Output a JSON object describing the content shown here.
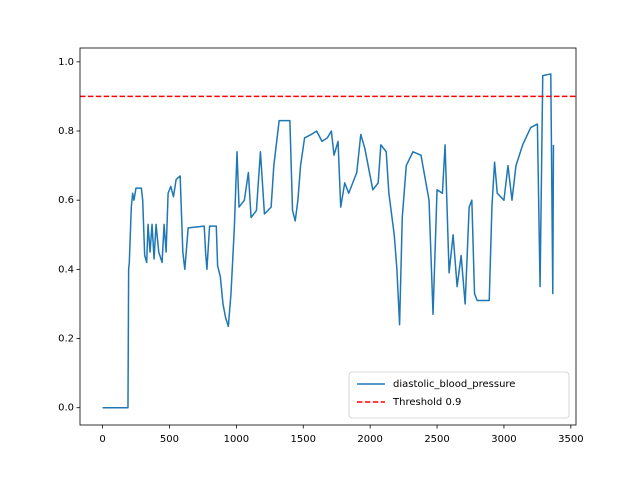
{
  "chart_data": {
    "type": "line",
    "x": [
      0,
      190,
      195,
      200,
      215,
      225,
      235,
      250,
      290,
      300,
      315,
      330,
      340,
      355,
      370,
      385,
      400,
      420,
      445,
      460,
      475,
      490,
      510,
      530,
      550,
      580,
      600,
      615,
      640,
      760,
      770,
      780,
      800,
      850,
      860,
      880,
      900,
      920,
      940,
      960,
      985,
      995,
      1005,
      1020,
      1060,
      1090,
      1110,
      1150,
      1180,
      1210,
      1260,
      1280,
      1320,
      1400,
      1420,
      1440,
      1460,
      1480,
      1510,
      1560,
      1600,
      1640,
      1680,
      1710,
      1730,
      1760,
      1780,
      1810,
      1840,
      1870,
      1900,
      1930,
      1960,
      1990,
      2020,
      2060,
      2080,
      2120,
      2140,
      2180,
      2200,
      2220,
      2240,
      2270,
      2320,
      2380,
      2440,
      2470,
      2500,
      2540,
      2560,
      2590,
      2620,
      2650,
      2680,
      2710,
      2740,
      2760,
      2780,
      2800,
      2890,
      2910,
      2930,
      2950,
      3000,
      3030,
      3060,
      3090,
      3140,
      3200,
      3250,
      3270,
      3290,
      3350,
      3365,
      3370
    ],
    "series": [
      {
        "name": "diastolic_blood_pressure",
        "color": "#1f77b4",
        "values": [
          0,
          0,
          0.4,
          0.42,
          0.58,
          0.62,
          0.6,
          0.635,
          0.635,
          0.6,
          0.44,
          0.42,
          0.53,
          0.45,
          0.53,
          0.43,
          0.53,
          0.45,
          0.42,
          0.53,
          0.45,
          0.62,
          0.64,
          0.61,
          0.66,
          0.67,
          0.45,
          0.4,
          0.52,
          0.525,
          0.45,
          0.4,
          0.525,
          0.525,
          0.41,
          0.38,
          0.3,
          0.26,
          0.235,
          0.33,
          0.52,
          0.63,
          0.74,
          0.58,
          0.6,
          0.68,
          0.55,
          0.57,
          0.74,
          0.56,
          0.58,
          0.7,
          0.83,
          0.83,
          0.57,
          0.54,
          0.6,
          0.7,
          0.78,
          0.79,
          0.8,
          0.77,
          0.78,
          0.8,
          0.73,
          0.77,
          0.58,
          0.65,
          0.62,
          0.65,
          0.68,
          0.79,
          0.75,
          0.69,
          0.63,
          0.65,
          0.76,
          0.74,
          0.62,
          0.5,
          0.4,
          0.24,
          0.55,
          0.7,
          0.74,
          0.73,
          0.6,
          0.27,
          0.63,
          0.62,
          0.76,
          0.39,
          0.5,
          0.35,
          0.44,
          0.3,
          0.58,
          0.6,
          0.33,
          0.31,
          0.31,
          0.58,
          0.71,
          0.62,
          0.6,
          0.7,
          0.6,
          0.7,
          0.76,
          0.81,
          0.82,
          0.35,
          0.96,
          0.965,
          0.33,
          0.76
        ]
      }
    ],
    "threshold": {
      "name": "Threshold 0.9",
      "value": 0.9,
      "color": "#ff0000"
    },
    "xlim": [
      -168.5,
      3538.5
    ],
    "xticks": [
      0,
      500,
      1000,
      1500,
      2000,
      2500,
      3000,
      3500
    ],
    "ylim": [
      -0.05,
      1.04
    ],
    "yticks": [
      {
        "value": 0,
        "label": "0.0"
      },
      0.2,
      0.4,
      0.6,
      0.8,
      {
        "value": 1,
        "label": "1.0"
      }
    ],
    "legend": "lower right"
  }
}
